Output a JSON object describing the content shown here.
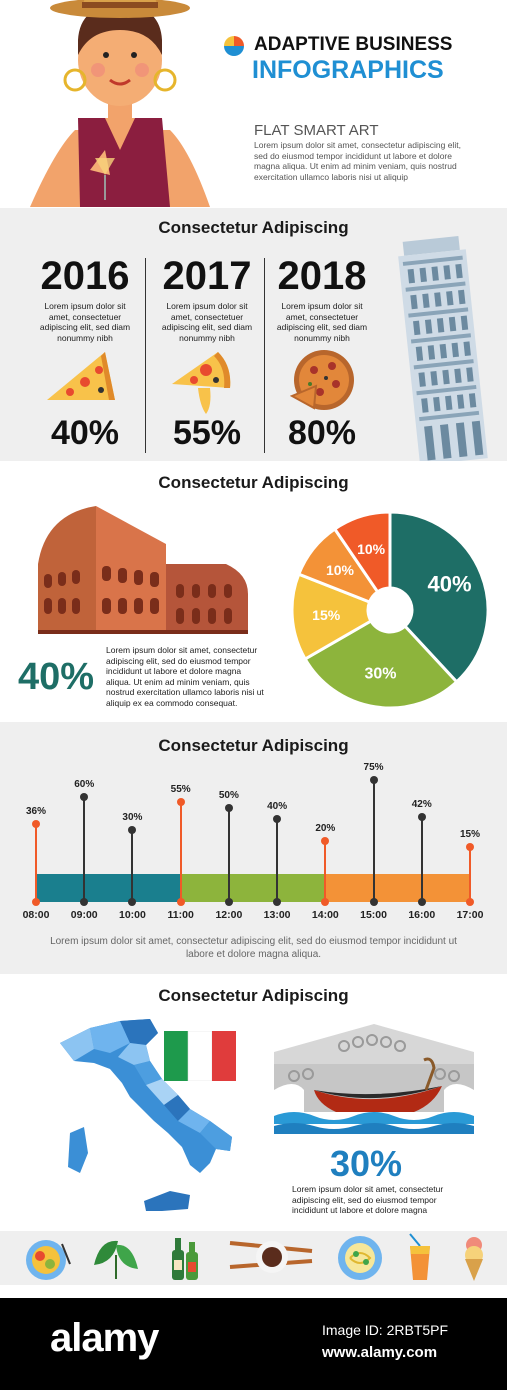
{
  "header": {
    "title_line1": "ADAPTIVE BUSINESS",
    "title_line2": "INFOGRAPHICS",
    "subtitle": "FLAT SMART ART",
    "body": "Lorem ipsum dolor sit amet, consectetur adipiscing elit, sed do eiusmod tempor incididunt ut labore et dolore magna aliqua. Ut enim ad minim veniam, quis nostrud exercitation ullamco laboris nisi ut aliquip"
  },
  "colors": {
    "teal": "#1a7f8e",
    "green": "#8db43c",
    "orange": "#f39237",
    "yellow": "#f5c23c",
    "red_orange": "#f05a28",
    "dark_green": "#1e6e66",
    "title_blue": "#1f8fd3"
  },
  "years_section": {
    "heading": "Consectetur Adipiscing",
    "items": [
      {
        "year": "2016",
        "text": "Lorem ipsum dolor sit amet, consectetuer adipiscing elit, sed diam nonummy nibh",
        "percent": "40%",
        "icon": "pizza-slice-icon"
      },
      {
        "year": "2017",
        "text": "Lorem ipsum dolor sit amet, consectetuer adipiscing elit, sed diam nonummy nibh",
        "percent": "55%",
        "icon": "pizza-slice-bitten-icon"
      },
      {
        "year": "2018",
        "text": "Lorem ipsum dolor sit amet, consectetuer adipiscing elit, sed diam nonummy nibh",
        "percent": "80%",
        "icon": "whole-pizza-icon"
      }
    ]
  },
  "pie_section": {
    "heading": "Consectetur Adipiscing",
    "big_percent": "40%",
    "text": "Lorem ipsum dolor sit amet, consectetur adipiscing elit, sed do eiusmod tempor incididunt ut labore et dolore magna aliqua. Ut enim ad minim veniam, quis nostrud exercitation ullamco laboris nisi ut aliquip ex ea commodo consequat.",
    "slices": [
      {
        "label": "40%",
        "value": 40,
        "color": "#1e6e66"
      },
      {
        "label": "30%",
        "value": 30,
        "color": "#8db43c"
      },
      {
        "label": "15%",
        "value": 15,
        "color": "#f5c23c"
      },
      {
        "label": "10%",
        "value": 10,
        "color": "#f39237"
      },
      {
        "label": "10%",
        "value": 10,
        "color": "#f05a28"
      }
    ]
  },
  "timeline_section": {
    "heading": "Consectetur Adipiscing",
    "caption": "Lorem ipsum dolor sit amet, consectetur adipiscing elit, sed do eiusmod tempor incididunt ut labore et dolore magna aliqua.",
    "points": [
      {
        "time": "08:00",
        "label": "36%",
        "value": 36,
        "color": "#f05a28"
      },
      {
        "time": "09:00",
        "label": "60%",
        "value": 60,
        "color": "#333333"
      },
      {
        "time": "10:00",
        "label": "30%",
        "value": 30,
        "color": "#333333"
      },
      {
        "time": "11:00",
        "label": "55%",
        "value": 55,
        "color": "#f05a28"
      },
      {
        "time": "12:00",
        "label": "50%",
        "value": 50,
        "color": "#333333"
      },
      {
        "time": "13:00",
        "label": "40%",
        "value": 40,
        "color": "#333333"
      },
      {
        "time": "14:00",
        "label": "20%",
        "value": 20,
        "color": "#f05a28"
      },
      {
        "time": "15:00",
        "label": "75%",
        "value": 75,
        "color": "#333333"
      },
      {
        "time": "16:00",
        "label": "42%",
        "value": 42,
        "color": "#333333"
      },
      {
        "time": "17:00",
        "label": "15%",
        "value": 15,
        "color": "#f05a28"
      }
    ],
    "bands": [
      "#1a7f8e",
      "#8db43c",
      "#f39237"
    ]
  },
  "map_section": {
    "heading": "Consectetur Adipiscing",
    "big_percent": "30%",
    "text": "Lorem ipsum dolor sit amet, consectetur adipiscing elit, sed do eiusmod tempor incididunt ut labore et dolore magna"
  },
  "icons_row": [
    "plate-food-icon",
    "basil-leaves-icon",
    "wine-bottles-icon",
    "coffee-cup-icon",
    "pasta-plate-icon",
    "juice-glass-icon",
    "ice-cream-icon"
  ],
  "footer": {
    "logo": "alamy",
    "image_id": "Image ID: 2RBT5PF",
    "site": "www.alamy.com"
  }
}
